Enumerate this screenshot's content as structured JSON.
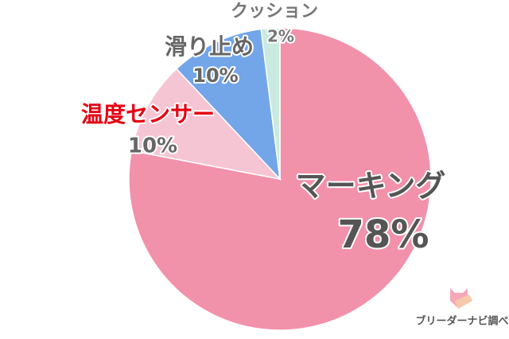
{
  "chart_data": {
    "type": "pie",
    "categories": [
      "マーキング",
      "温度センサー",
      "滑り止め",
      "クッション"
    ],
    "values": [
      78,
      10,
      10,
      2
    ],
    "value_labels": [
      "78%",
      "10%",
      "10%",
      "2%"
    ],
    "colors": [
      "#f291aa",
      "#f6c5d3",
      "#72a6e8",
      "#c9eadf"
    ],
    "label_colors": [
      "#555555",
      "#e60012",
      "#666666",
      "#777777"
    ],
    "source": "ブリーダーナビ調べ"
  }
}
